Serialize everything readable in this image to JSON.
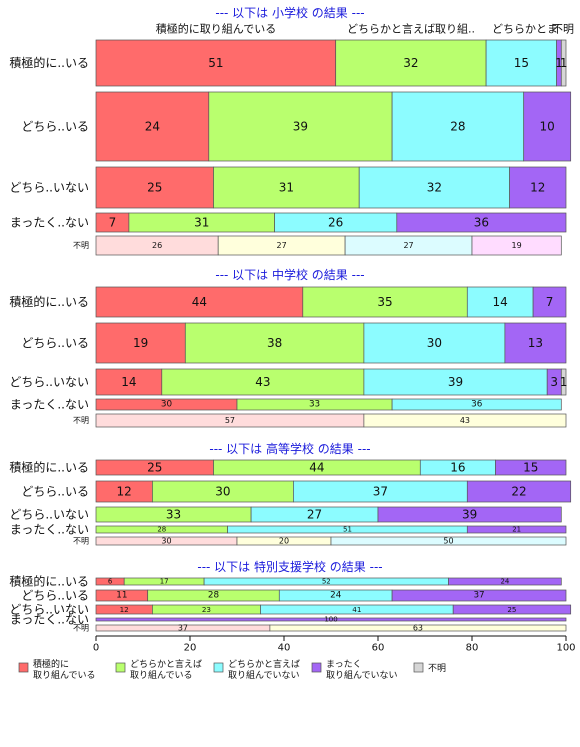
{
  "chart_data": {
    "type": "bar",
    "orientation": "horizontal-stacked-100",
    "xlim": [
      0,
      100
    ],
    "xticks": [
      "0",
      "20",
      "40",
      "60",
      "80",
      "100"
    ],
    "column_headers": [
      "積極的に取り組んでいる",
      "どちらかと言えば取り組..",
      "どちらかとま",
      "不明"
    ],
    "colors": {
      "main": [
        "#ff6b6b",
        "#b9ff6e",
        "#8cfcff",
        "#a366f5",
        "#d6d6d6"
      ],
      "unknown_row": [
        "#ffdcdc",
        "#ffffdc",
        "#dcfcff",
        "#ffdcff"
      ]
    },
    "legend": [
      {
        "label": "積極的に\n取り組んでいる",
        "color": "#ff6b6b"
      },
      {
        "label": "どちらかと言えば\n取り組んでいる",
        "color": "#b9ff6e"
      },
      {
        "label": "どちらかと言えば\n取り組んでいない",
        "color": "#8cfcff"
      },
      {
        "label": "まったく\n取り組んでいない",
        "color": "#a366f5"
      },
      {
        "label": "不明",
        "color": "#d6d6d6"
      }
    ],
    "panels": [
      {
        "title": "--- 以下は 小学校 の結果 ---",
        "rows": [
          {
            "label": "積極的に..いる",
            "values": [
              51,
              32,
              15,
              1,
              1
            ],
            "labels": [
              "51",
              "32",
              "15",
              "1",
              "1"
            ]
          },
          {
            "label": "どちら..いる",
            "values": [
              24,
              39,
              28,
              10
            ],
            "labels": [
              "24",
              "39",
              "28",
              "10"
            ]
          },
          {
            "label": "どちら..いない",
            "values": [
              25,
              31,
              32,
              12
            ],
            "labels": [
              "25",
              "31",
              "32",
              "12"
            ]
          },
          {
            "label": "まったく..ない",
            "values": [
              7,
              31,
              26,
              36
            ],
            "labels": [
              "7",
              "31",
              "26",
              "36"
            ]
          },
          {
            "label": "不明",
            "values": [
              26,
              27,
              27,
              19
            ],
            "labels": [
              "26",
              "27",
              "27",
              "19"
            ],
            "small": true
          }
        ]
      },
      {
        "title": "--- 以下は 中学校 の結果 ---",
        "rows": [
          {
            "label": "積極的に..いる",
            "values": [
              44,
              35,
              14,
              7
            ],
            "labels": [
              "44",
              "35",
              "14",
              "7"
            ]
          },
          {
            "label": "どちら..いる",
            "values": [
              19,
              38,
              30,
              13
            ],
            "labels": [
              "19",
              "38",
              "30",
              "13"
            ]
          },
          {
            "label": "どちら..いない",
            "values": [
              14,
              43,
              39,
              3,
              1
            ],
            "labels": [
              "14",
              "43",
              "39",
              "3",
              "1"
            ]
          },
          {
            "label": "まったく..ない",
            "values": [
              30,
              33,
              36
            ],
            "labels": [
              "30",
              "33",
              "36"
            ]
          },
          {
            "label": "不明",
            "values": [
              57,
              43
            ],
            "labels": [
              "57",
              "43"
            ],
            "small": true
          }
        ]
      },
      {
        "title": "--- 以下は 高等学校 の結果 ---",
        "rows": [
          {
            "label": "積極的に..いる",
            "values": [
              25,
              44,
              16,
              15
            ],
            "labels": [
              "25",
              "44",
              "16",
              "15"
            ]
          },
          {
            "label": "どちら..いる",
            "values": [
              12,
              30,
              37,
              22
            ],
            "labels": [
              "12",
              "30",
              "37",
              "22"
            ]
          },
          {
            "label": "どちら..いない",
            "values": [
              0,
              33,
              27,
              39
            ],
            "labels": [
              "",
              "33",
              "27",
              "39"
            ]
          },
          {
            "label": "まったく..ない",
            "values": [
              0,
              28,
              51,
              21
            ],
            "labels": [
              "",
              "28",
              "51",
              "21"
            ]
          },
          {
            "label": "不明",
            "values": [
              30,
              20,
              50
            ],
            "labels": [
              "30",
              "20",
              "50"
            ],
            "small": true
          }
        ]
      },
      {
        "title": "--- 以下は 特別支援学校 の結果 ---",
        "rows": [
          {
            "label": "積極的に..いる",
            "values": [
              6,
              17,
              52,
              24
            ],
            "labels": [
              "6",
              "17",
              "52",
              "24"
            ]
          },
          {
            "label": "どちら..いる",
            "values": [
              11,
              28,
              24,
              37
            ],
            "labels": [
              "11",
              "28",
              "24",
              "37"
            ]
          },
          {
            "label": "どちら..いない",
            "values": [
              12,
              23,
              41,
              25
            ],
            "labels": [
              "12",
              "23",
              "41",
              "25"
            ]
          },
          {
            "label": "まったく..ない",
            "values": [
              0,
              0,
              0,
              100
            ],
            "labels": [
              "",
              "",
              "",
              "100"
            ]
          },
          {
            "label": "不明",
            "values": [
              37,
              63
            ],
            "labels": [
              "37",
              "63"
            ],
            "small": true
          }
        ]
      }
    ]
  }
}
